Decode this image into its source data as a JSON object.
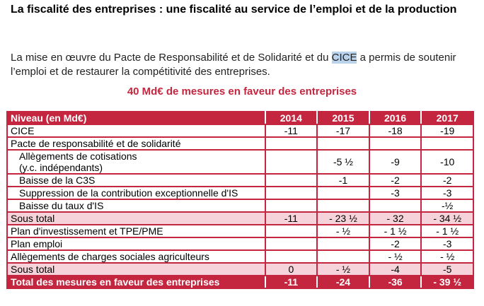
{
  "title": "La fiscalité des entreprises : une fiscalité au service de l’emploi et de la production",
  "paragraph": {
    "before": "La mise en œuvre du Pacte de Responsabilité et de Solidarité et du ",
    "highlight": "CICE",
    "after": " a permis de soutenir l’emploi et de restaurer la compétitivité des entreprises."
  },
  "subtitle": "40 Md€ de mesures en faveur des entreprises",
  "colors": {
    "accent": "#c4263f",
    "subtotal_bg": "#f6d3da",
    "highlight": "#b9d3ec"
  },
  "table": {
    "header": [
      "Niveau (en Md€)",
      "2014",
      "2015",
      "2016",
      "2017"
    ],
    "rows": [
      {
        "label": "CICE",
        "values": [
          "-11",
          "-17",
          "-18",
          "-19"
        ],
        "type": "normal"
      },
      {
        "label": "Pacte de responsabilité et de solidarité",
        "values": [
          "",
          "",
          "",
          ""
        ],
        "type": "normal"
      },
      {
        "label": "Allègements de cotisations",
        "label2": "(y.c. indépendants)",
        "values": [
          "",
          "-5 ½",
          "-9",
          "-10"
        ],
        "type": "indent2"
      },
      {
        "label": "Baisse de la C3S",
        "values": [
          "",
          "-1",
          "-2",
          "-2"
        ],
        "type": "indent"
      },
      {
        "label": "Suppression de la contribution exceptionnelle d'IS",
        "values": [
          "",
          "",
          "-3",
          "-3"
        ],
        "type": "indent"
      },
      {
        "label": "Baisse du taux d'IS",
        "values": [
          "",
          "",
          "",
          "-½"
        ],
        "type": "indent"
      },
      {
        "label": "Sous total",
        "values": [
          "-11",
          "- 23 ½",
          "- 32",
          "- 34 ½"
        ],
        "type": "sub"
      },
      {
        "label": "Plan d'investissement et TPE/PME",
        "values": [
          "",
          "- ½",
          "- 1 ½",
          "- 1 ½"
        ],
        "type": "normal"
      },
      {
        "label": "Plan emploi",
        "values": [
          "",
          "",
          "-2",
          "-3"
        ],
        "type": "normal"
      },
      {
        "label": "Allègements de charges sociales agriculteurs",
        "values": [
          "",
          "",
          "- ½",
          "- ½"
        ],
        "type": "normal"
      },
      {
        "label": "Sous total",
        "values": [
          "0",
          "- ½",
          "-4",
          "-5"
        ],
        "type": "sub"
      },
      {
        "label": "Total des mesures en faveur des entreprises",
        "values": [
          "-11",
          "-24",
          "-36",
          "- 39 ½"
        ],
        "type": "total"
      }
    ]
  }
}
